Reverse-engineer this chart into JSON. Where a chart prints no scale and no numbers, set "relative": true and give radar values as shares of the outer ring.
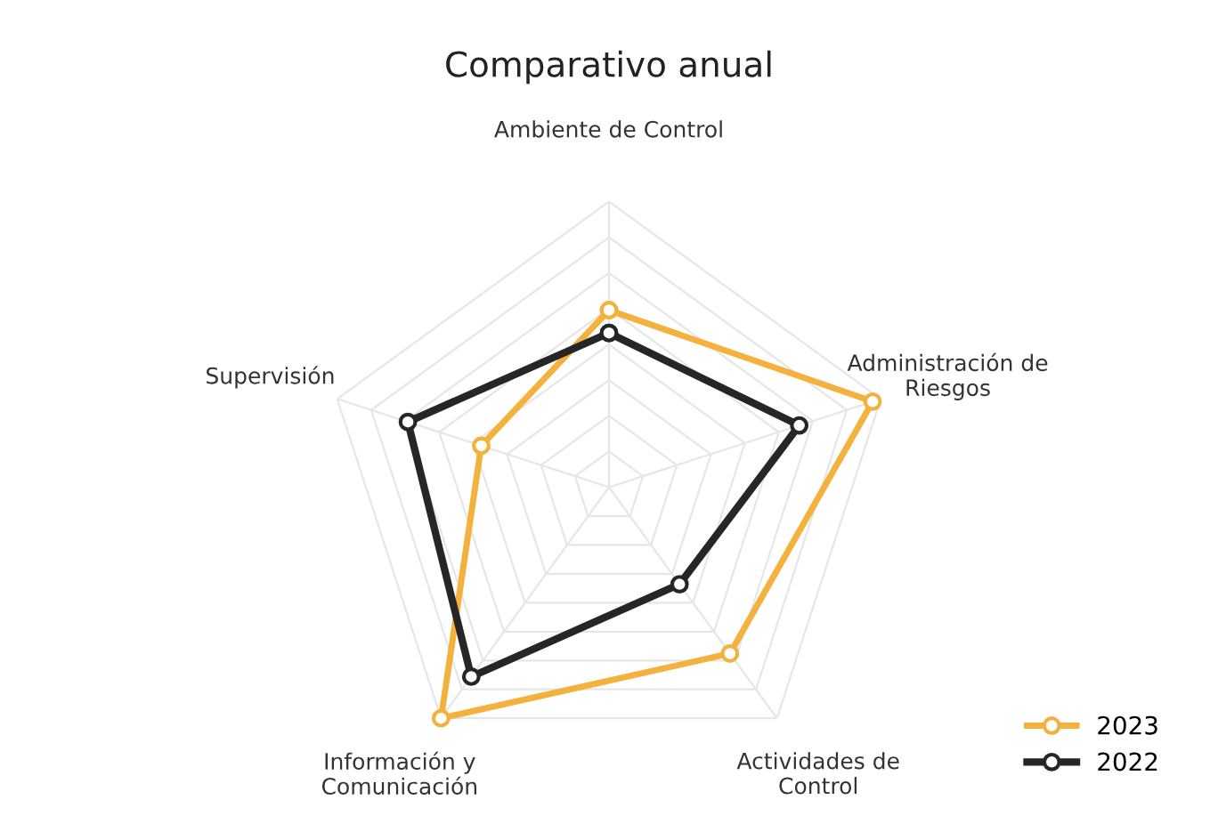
{
  "chart_data": {
    "type": "radar",
    "title": "Comparativo anual",
    "relative": true,
    "grid": true,
    "legend": "bottom right",
    "marker": "circle",
    "line_style": "solid",
    "categories": [
      "Ambiente de Control",
      "Administración de\nRiesgos",
      "Actividades de\nControl",
      "Información y\nComunicación",
      "Supervisión"
    ],
    "series": [
      {
        "name": "2023",
        "color": "#f4b13e",
        "values": [
          0.62,
          0.97,
          0.72,
          1.0,
          0.47
        ]
      },
      {
        "name": "2022",
        "color": "#262626",
        "values": [
          0.54,
          0.7,
          0.42,
          0.82,
          0.74
        ]
      }
    ]
  }
}
